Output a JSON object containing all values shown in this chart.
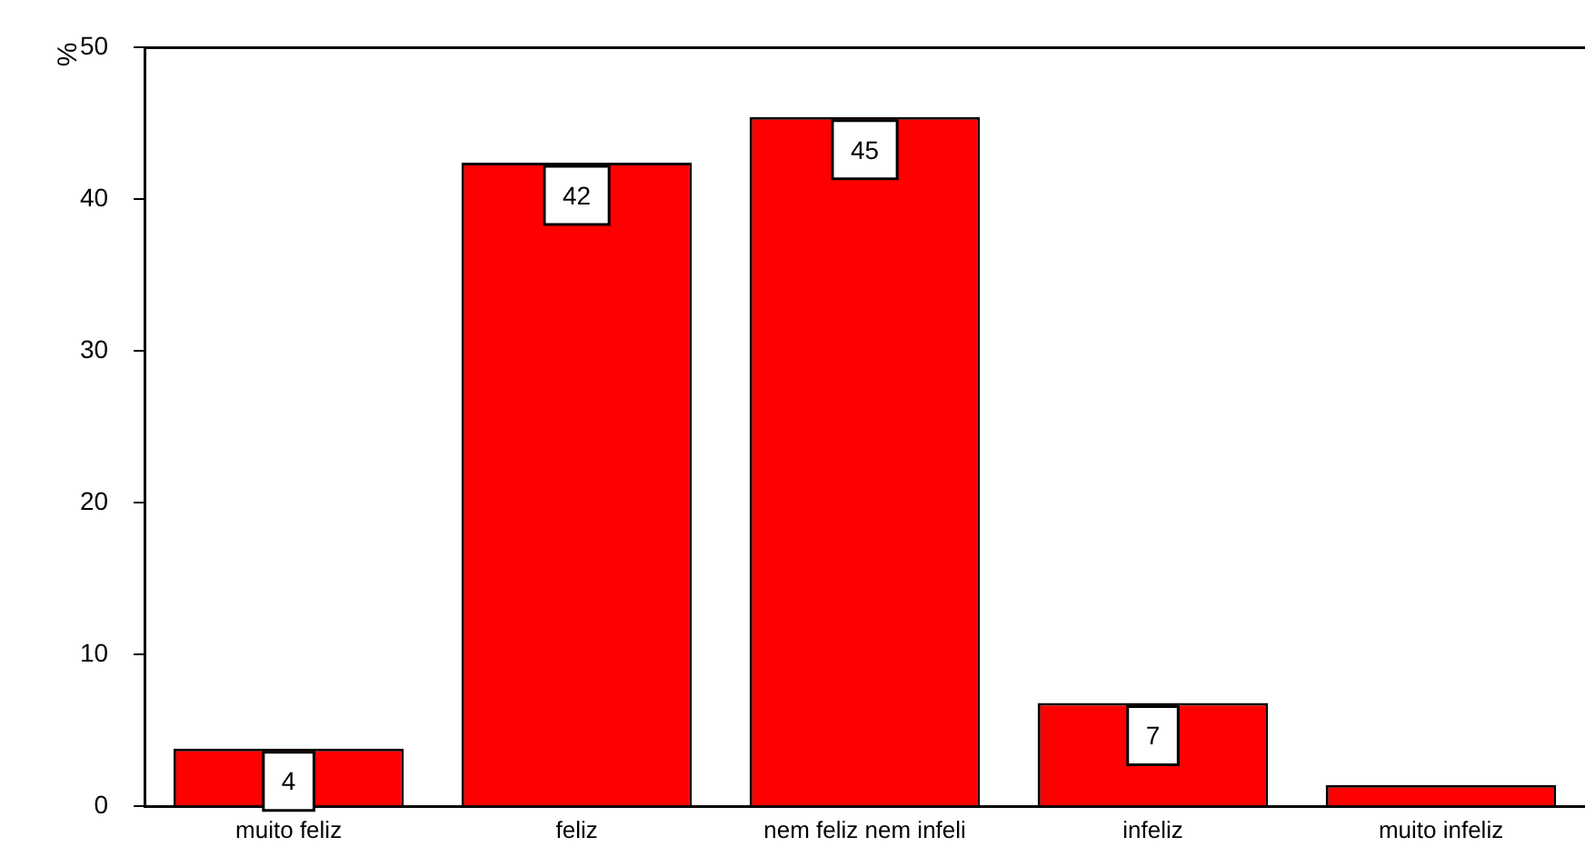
{
  "chart_data": {
    "type": "bar",
    "ylabel": "%",
    "categories": [
      "muito feliz",
      "feliz",
      "nem feliz nem infeli",
      "infeliz",
      "muito infeliz"
    ],
    "values": [
      3.8,
      42.4,
      45.4,
      6.8,
      1.4
    ],
    "value_labels": [
      "4",
      "42",
      "45",
      "7",
      null
    ],
    "color": "#ff0000",
    "ylim": [
      0,
      50
    ],
    "yticks": [
      0,
      10,
      20,
      30,
      40,
      50
    ],
    "grid": false,
    "legend": false
  }
}
